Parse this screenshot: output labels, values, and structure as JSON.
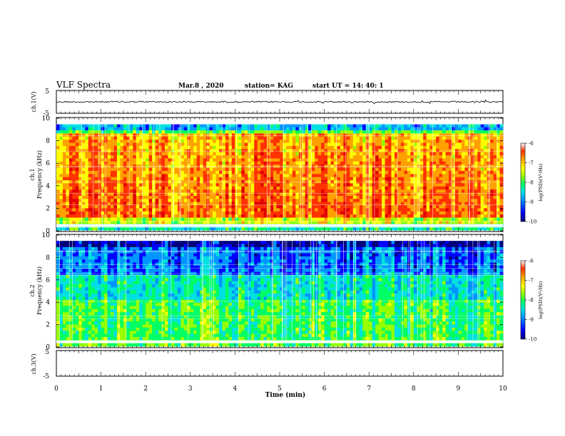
{
  "header": {
    "title": "VLF Spectra",
    "date": "Mar.8 , 2020",
    "station": "station= KAG",
    "start": "start UT = 14: 40: 1"
  },
  "colors": {
    "spectrogram_scale": [
      "#00007a",
      "#0000ff",
      "#0096ff",
      "#00e0e0",
      "#00ff64",
      "#96ff00",
      "#ffff00",
      "#ffa000",
      "#ff3200",
      "#e00000"
    ],
    "background": "#ffffff",
    "axes": "#000000"
  },
  "chart_data": [
    {
      "id": "ch1-waveform",
      "type": "line",
      "ylabel": "ch.1(V)",
      "ylim": [
        -5,
        5
      ],
      "yticks": [
        "5",
        "-5"
      ],
      "xlim": [
        0,
        10
      ],
      "description_values": "waveform oscillating near 0 V with small spikes"
    },
    {
      "id": "ch1-spectrogram",
      "type": "heatmap",
      "ylabel_line1": "ch.1",
      "ylabel_line2": "Frequency (kHz)",
      "ylim": [
        0,
        10
      ],
      "yticks": [
        "0",
        "2",
        "4",
        "6",
        "8",
        "10"
      ],
      "xlim": [
        0,
        10
      ],
      "colorbar": {
        "label": "log(PSD)(V²/Hz)",
        "range": [
          -10,
          -6
        ],
        "ticks": [
          "-6",
          "-7",
          "-8",
          "-9",
          "-10"
        ]
      },
      "profile": "high"
    },
    {
      "id": "ch2-spectrogram",
      "type": "heatmap",
      "ylabel_line1": "ch.2",
      "ylabel_line2": "Frequency (kHz)",
      "ylim": [
        0,
        10
      ],
      "yticks": [
        "0",
        "2",
        "4",
        "6",
        "8",
        "10"
      ],
      "xlim": [
        0,
        10
      ],
      "colorbar": {
        "label": "log(PSD)(V²/Hz)",
        "range": [
          -10,
          -6
        ],
        "ticks": [
          "-6",
          "-7",
          "-8",
          "-9",
          "-10"
        ]
      },
      "profile": "low"
    },
    {
      "id": "ch3-waveform",
      "type": "line",
      "ylabel": "ch.3(V)",
      "ylim": [
        -5,
        5
      ],
      "yticks": [
        "5",
        "-5"
      ],
      "xlim": [
        0,
        10
      ],
      "description_values": "no signal"
    }
  ],
  "xaxis": {
    "label": "Time (min)",
    "ticks": [
      "0",
      "1",
      "2",
      "3",
      "4",
      "5",
      "6",
      "7",
      "8",
      "9",
      "10"
    ]
  }
}
